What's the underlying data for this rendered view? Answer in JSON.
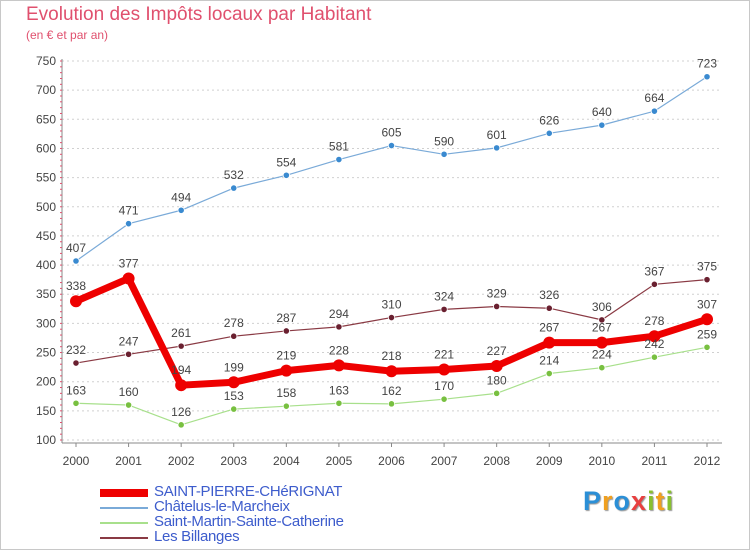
{
  "title": "Evolution des Impôts locaux par Habitant",
  "subtitle": "(en € et par an)",
  "logo": {
    "letters": [
      {
        "ch": "P",
        "color": "#2b8fd6"
      },
      {
        "ch": "r",
        "color": "#f0a020"
      },
      {
        "ch": "o",
        "color": "#2b8fd6"
      },
      {
        "ch": "x",
        "color": "#e84040"
      },
      {
        "ch": "i",
        "color": "#88c030"
      },
      {
        "ch": "t",
        "color": "#f0a020"
      },
      {
        "ch": "i",
        "color": "#88c030"
      }
    ]
  },
  "chart_data": {
    "type": "line",
    "x": [
      2000,
      2001,
      2002,
      2003,
      2004,
      2005,
      2006,
      2007,
      2008,
      2009,
      2010,
      2011,
      2012
    ],
    "ylim": [
      100,
      750
    ],
    "yticks": [
      100,
      150,
      200,
      250,
      300,
      350,
      400,
      450,
      500,
      550,
      600,
      650,
      700,
      750
    ],
    "grid": "horizontal-dashed",
    "legend_position": "bottom-left",
    "series": [
      {
        "name": "Châtelus-le-Marcheix",
        "color": "#7aaad8",
        "marker": "#3a8ad0",
        "width": 1.2,
        "values": [
          407,
          471,
          494,
          532,
          554,
          581,
          605,
          590,
          601,
          626,
          640,
          664,
          723
        ]
      },
      {
        "name": "Saint-Martin-Sainte-Catherine",
        "color": "#a8e08c",
        "marker": "#78c040",
        "width": 1.2,
        "values": [
          163,
          160,
          126,
          153,
          158,
          163,
          162,
          170,
          180,
          214,
          224,
          242,
          259
        ]
      },
      {
        "name": "Les Billanges",
        "color": "#8a3a44",
        "marker": "#6a2030",
        "width": 1.2,
        "values": [
          232,
          247,
          261,
          278,
          287,
          294,
          310,
          324,
          329,
          326,
          306,
          367,
          375
        ]
      },
      {
        "name": "SAINT-PIERRE-CHéRIGNAT",
        "color": "#ee0000",
        "marker": "#ee0000",
        "width": 7,
        "values": [
          338,
          377,
          194,
          199,
          219,
          228,
          218,
          221,
          227,
          267,
          267,
          278,
          307
        ]
      }
    ],
    "legend_order": [
      3,
      0,
      1,
      2
    ]
  }
}
